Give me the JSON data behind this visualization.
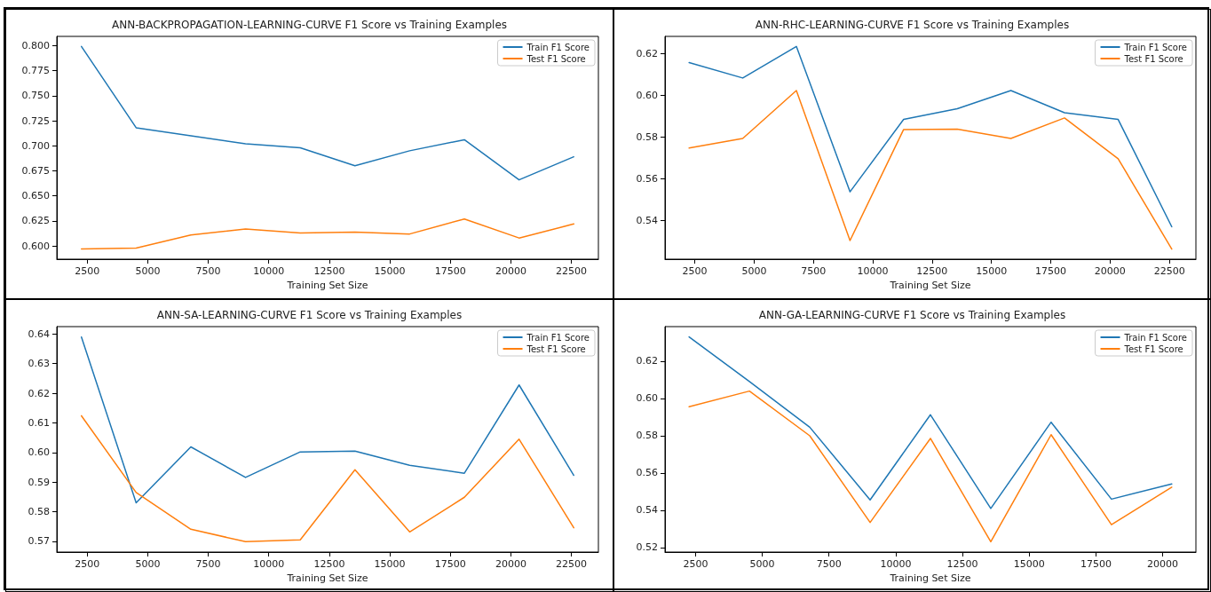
{
  "chart_data": [
    {
      "type": "line",
      "title": "ANN-BACKPROPAGATION-LEARNING-CURVE F1 Score vs Training Examples",
      "xlabel": "Training Set Size",
      "x": [
        2260,
        4520,
        6780,
        9040,
        11300,
        13560,
        15820,
        18080,
        20340,
        22600
      ],
      "series": [
        {
          "name": "Train F1 Score",
          "color": "#1f77b4",
          "values": [
            0.799,
            0.718,
            0.71,
            0.702,
            0.698,
            0.68,
            0.695,
            0.706,
            0.666,
            0.689
          ]
        },
        {
          "name": "Test F1 Score",
          "color": "#ff7f0e",
          "values": [
            0.597,
            0.598,
            0.611,
            0.617,
            0.613,
            0.614,
            0.612,
            0.627,
            0.608,
            0.622
          ]
        }
      ],
      "xlim": [
        1243,
        23617
      ],
      "xticks": [
        2500,
        5000,
        7500,
        10000,
        12500,
        15000,
        17500,
        20000,
        22500
      ],
      "ylim": [
        0.5869,
        0.8091
      ],
      "yticks": [
        {
          "value": 0.6,
          "label": "0.600"
        },
        {
          "value": 0.625,
          "label": "0.625"
        },
        {
          "value": 0.65,
          "label": "0.650"
        },
        {
          "value": 0.675,
          "label": "0.675"
        },
        {
          "value": 0.7,
          "label": "0.700"
        },
        {
          "value": 0.725,
          "label": "0.725"
        },
        {
          "value": 0.75,
          "label": "0.750"
        },
        {
          "value": 0.775,
          "label": "0.775"
        },
        {
          "value": 0.8,
          "label": "0.800"
        }
      ],
      "legend": "top right",
      "marker": "none",
      "line_style": "solid"
    },
    {
      "type": "line",
      "title": "ANN-RHC-LEARNING-CURVE F1 Score vs Training Examples",
      "xlabel": "Training Set Size",
      "x": [
        2260,
        4520,
        6780,
        9040,
        11300,
        13560,
        15820,
        18080,
        20340,
        22600
      ],
      "series": [
        {
          "name": "Train F1 Score",
          "color": "#1f77b4",
          "values": [
            0.6156,
            0.6082,
            0.6233,
            0.5538,
            0.5884,
            0.5935,
            0.6022,
            0.5916,
            0.5884,
            0.5371
          ]
        },
        {
          "name": "Test F1 Score",
          "color": "#ff7f0e",
          "values": [
            0.5747,
            0.5793,
            0.6022,
            0.5305,
            0.5836,
            0.5838,
            0.5793,
            0.5891,
            0.5696,
            0.5264
          ]
        }
      ],
      "xlim": [
        1243,
        23617
      ],
      "xticks": [
        2500,
        5000,
        7500,
        10000,
        12500,
        15000,
        17500,
        20000,
        22500
      ],
      "ylim": [
        0.5216,
        0.6281
      ],
      "yticks": [
        0.54,
        0.56,
        {
          "value": 0.58,
          "label": "0.58"
        },
        {
          "value": 0.6,
          "label": "0.60"
        },
        0.62
      ],
      "legend": "top right",
      "marker": "none",
      "line_style": "solid"
    },
    {
      "type": "line",
      "title": "ANN-SA-LEARNING-CURVE F1 Score vs Training Examples",
      "xlabel": "Training Set Size",
      "x": [
        2260,
        4520,
        6780,
        9040,
        11300,
        13560,
        15820,
        18080,
        20340,
        22600
      ],
      "series": [
        {
          "name": "Train F1 Score",
          "color": "#1f77b4",
          "values": [
            0.639,
            0.583,
            0.6019,
            0.5916,
            0.6002,
            0.6005,
            0.5957,
            0.593,
            0.6228,
            0.5923
          ]
        },
        {
          "name": "Test F1 Score",
          "color": "#ff7f0e",
          "values": [
            0.6124,
            0.5865,
            0.5741,
            0.5699,
            0.5705,
            0.5942,
            0.5732,
            0.5849,
            0.6045,
            0.5746
          ]
        }
      ],
      "xlim": [
        1243,
        23617
      ],
      "xticks": [
        2500,
        5000,
        7500,
        10000,
        12500,
        15000,
        17500,
        20000,
        22500
      ],
      "ylim": [
        0.5664,
        0.6425
      ],
      "yticks": [
        0.57,
        0.58,
        0.59,
        {
          "value": 0.6,
          "label": "0.60"
        },
        0.61,
        0.62,
        0.63,
        0.64
      ],
      "legend": "top right",
      "marker": "none",
      "line_style": "solid"
    },
    {
      "type": "line",
      "title": "ANN-GA-LEARNING-CURVE F1 Score vs Training Examples",
      "xlabel": "Training Set Size",
      "x": [
        2260,
        4520,
        6780,
        9040,
        11300,
        13560,
        15820,
        18080,
        20340
      ],
      "series": [
        {
          "name": "Train F1 Score",
          "color": "#1f77b4",
          "values": [
            0.633,
            0.609,
            0.5845,
            0.5455,
            0.5912,
            0.5409,
            0.5872,
            0.5459,
            0.5541
          ]
        },
        {
          "name": "Test F1 Score",
          "color": "#ff7f0e",
          "values": [
            0.5955,
            0.6039,
            0.5799,
            0.5334,
            0.5785,
            0.523,
            0.5805,
            0.5322,
            0.5523
          ]
        }
      ],
      "xlim": [
        1356,
        21244
      ],
      "xticks": [
        2500,
        5000,
        7500,
        10000,
        12500,
        15000,
        17500,
        20000
      ],
      "ylim": [
        0.5175,
        0.6385
      ],
      "yticks": [
        0.52,
        0.54,
        0.56,
        {
          "value": 0.58,
          "label": "0.58"
        },
        {
          "value": 0.6,
          "label": "0.60"
        },
        0.62
      ],
      "legend": "top right",
      "marker": "none",
      "line_style": "solid"
    }
  ]
}
